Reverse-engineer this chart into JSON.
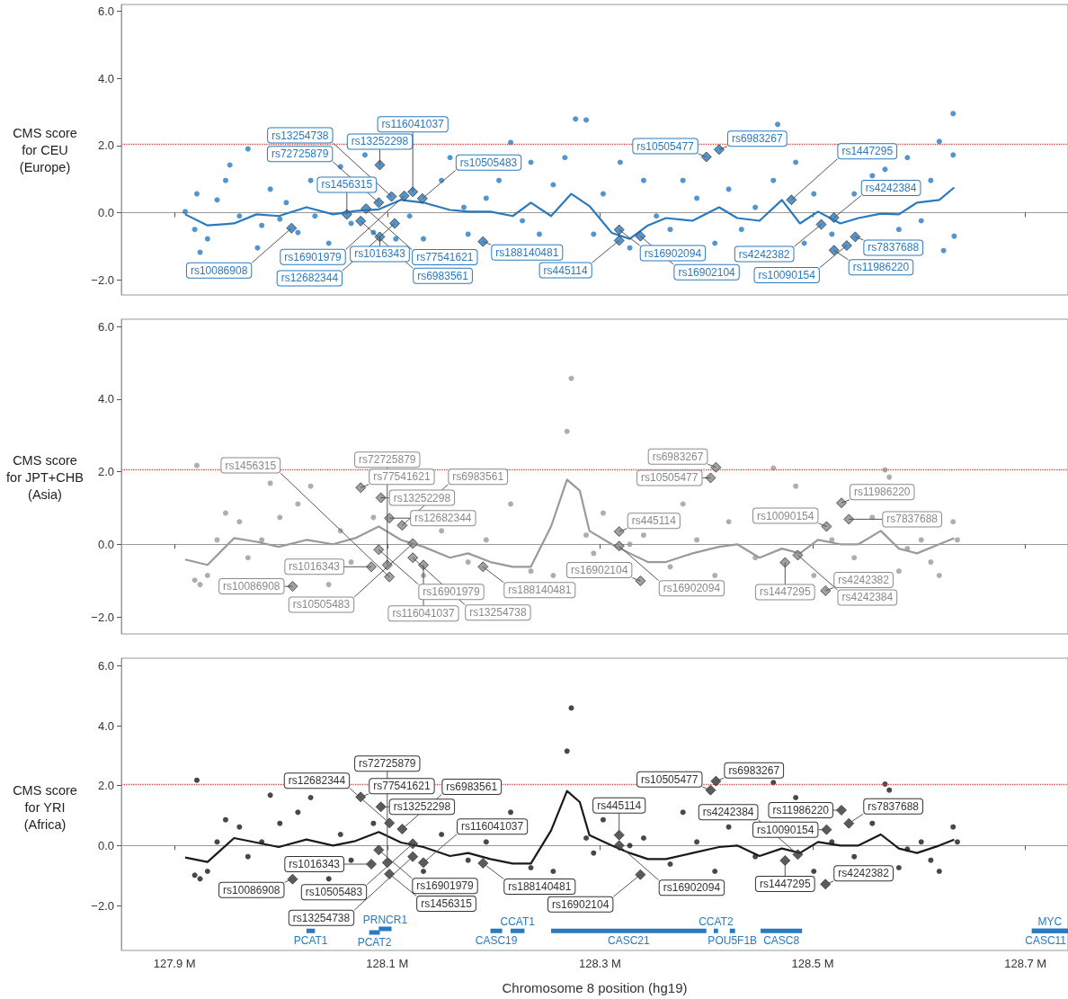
{
  "chart_data": [
    {
      "type": "scatter",
      "ylabel": "CMS score\nfor CEU\n(Europe)",
      "xlim": [
        127.85,
        128.74
      ],
      "ylim": [
        -2.45,
        6.2
      ],
      "xticks": [
        {
          "value": 127.9,
          "label": null
        },
        {
          "value": 128.1,
          "label": null
        },
        {
          "value": 128.3,
          "label": null
        },
        {
          "value": 128.5,
          "label": null
        },
        {
          "value": 128.7,
          "label": null
        }
      ],
      "yticks": [
        {
          "value": -2,
          "label": "−2.0"
        },
        {
          "value": 0,
          "label": "0.0"
        },
        {
          "value": 2,
          "label": "2.0"
        },
        {
          "value": 4,
          "label": "4.0"
        },
        {
          "value": 6,
          "label": "6.0"
        }
      ],
      "tick_labels": "y",
      "ref_lines": [
        {
          "axis": "y",
          "value": 2.05,
          "color": "#e8413a",
          "line_style": "dotted"
        }
      ],
      "series": [
        {
          "type": "scatter",
          "marker": "circle",
          "color": "#2a7ac0",
          "x": [
            127.91,
            127.919,
            127.921,
            127.924,
            127.931,
            127.94,
            127.948,
            127.952,
            127.961,
            127.969,
            127.978,
            127.982,
            127.99,
            127.999,
            128.005,
            128.016,
            128.028,
            128.032,
            128.045,
            128.056,
            128.066,
            128.079,
            128.087,
            128.108,
            128.121,
            128.134,
            128.151,
            128.159,
            128.172,
            128.176,
            128.193,
            128.205,
            128.216,
            128.227,
            128.235,
            128.243,
            128.256,
            128.267,
            128.277,
            128.287,
            128.294,
            128.303,
            128.319,
            128.328,
            128.341,
            128.353,
            128.366,
            128.378,
            128.391,
            128.408,
            128.421,
            128.433,
            128.446,
            128.463,
            128.467,
            128.484,
            128.492,
            128.501,
            128.518,
            128.539,
            128.556,
            128.568,
            128.581,
            128.589,
            128.602,
            128.611,
            128.619,
            128.623,
            128.632,
            128.632,
            128.633
          ],
          "values": [
            0.03,
            -0.5,
            0.56,
            -1.18,
            -0.78,
            0.38,
            0.96,
            1.42,
            -0.1,
            1.9,
            -1.05,
            -0.38,
            0.7,
            -0.19,
            0.3,
            -0.59,
            0.96,
            -0.1,
            -0.91,
            1.37,
            -0.32,
            1.72,
            -0.59,
            -0.78,
            -0.1,
            -0.78,
            0.96,
            1.64,
            0.16,
            -0.64,
            0.43,
            0.96,
            2.09,
            -0.24,
            1.5,
            -0.64,
            0.83,
            1.64,
            2.79,
            2.76,
            -0.64,
            0.56,
            1.5,
            -1.05,
            0.96,
            -0.1,
            -0.5,
            0.96,
            0.43,
            -0.91,
            0.7,
            -0.5,
            0.16,
            0.96,
            2.63,
            1.5,
            -0.91,
            0.56,
            -0.64,
            0.56,
            1.1,
            1.29,
            -0.5,
            1.64,
            -0.24,
            0.96,
            2.12,
            -1.13,
            2.95,
            1.72,
            -0.7
          ]
        },
        {
          "type": "line",
          "marker": "none",
          "line_style": "solid",
          "color": "#2a7ac0",
          "x": [
            127.91,
            127.931,
            127.956,
            127.977,
            127.998,
            128.024,
            128.049,
            128.07,
            128.092,
            128.113,
            128.134,
            128.159,
            128.176,
            128.197,
            128.218,
            128.235,
            128.254,
            128.273,
            128.29,
            128.311,
            128.328,
            128.345,
            128.362,
            128.387,
            128.412,
            128.429,
            128.45,
            128.471,
            128.488,
            128.505,
            128.526,
            128.543,
            128.564,
            128.581,
            128.598,
            128.619,
            128.633
          ],
          "values": [
            -0.05,
            -0.38,
            -0.32,
            -0.05,
            -0.1,
            0.16,
            -0.05,
            0.05,
            0.1,
            0.38,
            0.3,
            0.08,
            0.03,
            0.03,
            -0.1,
            0.3,
            -0.1,
            0.56,
            0.2,
            -0.6,
            -0.78,
            -0.38,
            -0.16,
            -0.24,
            0.16,
            -0.16,
            -0.24,
            0.38,
            -0.32,
            0.03,
            -0.32,
            -0.16,
            -0.03,
            -0.05,
            0.3,
            0.38,
            0.75
          ]
        },
        {
          "type": "scatter",
          "marker": "diamond",
          "color": "#2a7ac0",
          "x": [
            128.062,
            128.092,
            128.093,
            128.104,
            128.08,
            128.124,
            128.133,
            128.116,
            128.01,
            128.075,
            128.093,
            128.107,
            128.19,
            128.318,
            128.318,
            128.338,
            128.4,
            128.412,
            128.48,
            128.508,
            128.52,
            128.54,
            128.52,
            128.532
          ],
          "values": [
            -0.05,
            0.3,
            1.42,
            0.48,
            0.12,
            0.62,
            0.42,
            0.5,
            -0.46,
            -0.25,
            -0.72,
            -0.32,
            -0.86,
            -0.51,
            -0.83,
            -0.7,
            1.66,
            1.88,
            0.38,
            -0.35,
            -0.15,
            -0.72,
            -1.12,
            -0.98
          ],
          "value_labels": [
            "rs1456315",
            "rs72725879",
            "rs13252298",
            "rs13254738",
            "rs77541621",
            "rs116041037",
            "rs10505483",
            "rs16901979",
            "rs10086908",
            "rs6983561",
            "rs1016343",
            "rs12682344",
            "rs188140481",
            "rs16902094",
            "rs445114",
            "rs16902104",
            "rs10505477",
            "rs6983267",
            "rs1447295",
            "rs4242382",
            "rs4242384",
            "rs7837688",
            "rs11986220",
            "rs10090154"
          ]
        }
      ]
    },
    {
      "type": "scatter",
      "ylabel": "CMS score\nfor JPT+CHB\n(Asia)",
      "xlim": [
        127.85,
        128.74
      ],
      "ylim": [
        -2.47,
        6.2
      ],
      "xticks": [
        {
          "value": 127.9,
          "label": null
        },
        {
          "value": 128.1,
          "label": null
        },
        {
          "value": 128.3,
          "label": null
        },
        {
          "value": 128.5,
          "label": null
        },
        {
          "value": 128.7,
          "label": null
        }
      ],
      "yticks": [
        {
          "value": -2,
          "label": "−2.0"
        },
        {
          "value": 0,
          "label": "0.0"
        },
        {
          "value": 2,
          "label": "2.0"
        },
        {
          "value": 4,
          "label": "4.0"
        },
        {
          "value": 6,
          "label": "6.0"
        }
      ],
      "tick_labels": "y",
      "ref_lines": [
        {
          "axis": "y",
          "value": 2.05,
          "color": "#e8413a",
          "line_style": "dotted"
        }
      ],
      "series": [
        {
          "type": "scatter",
          "marker": "circle",
          "color": "#9a9a9a",
          "x": [
            127.921,
            127.919,
            127.924,
            127.931,
            127.94,
            127.948,
            127.961,
            127.969,
            127.982,
            127.99,
            127.999,
            128.016,
            128.028,
            128.045,
            128.056,
            128.066,
            128.087,
            128.134,
            128.151,
            128.176,
            128.193,
            128.216,
            128.235,
            128.256,
            128.269,
            128.273,
            128.287,
            128.294,
            128.303,
            128.328,
            128.341,
            128.366,
            128.378,
            128.391,
            128.408,
            128.421,
            128.446,
            128.463,
            128.484,
            128.501,
            128.518,
            128.539,
            128.556,
            128.568,
            128.572,
            128.581,
            128.589,
            128.602,
            128.611,
            128.619,
            128.632,
            128.636
          ],
          "values": [
            2.17,
            -0.99,
            -1.11,
            -0.86,
            0.12,
            0.86,
            0.62,
            -0.37,
            0.12,
            1.68,
            0.74,
            1.11,
            1.6,
            -1.11,
            0.37,
            -0.49,
            0.74,
            -0.86,
            0.37,
            -0.49,
            0.12,
            1.11,
            -0.74,
            -0.86,
            3.11,
            4.57,
            0.25,
            -0.25,
            0.86,
            0,
            0.25,
            -0.62,
            1.11,
            0.12,
            -0.86,
            0.62,
            -0.37,
            2.1,
            1.6,
            -0.86,
            0.12,
            -0.37,
            0.74,
            2.05,
            1.85,
            -0.74,
            -0.12,
            0.12,
            -0.49,
            -0.86,
            0.62,
            0.12
          ]
        },
        {
          "type": "line",
          "marker": "none",
          "line_style": "solid",
          "color": "#9a9a9a",
          "x": [
            127.91,
            127.931,
            127.956,
            127.977,
            127.998,
            128.024,
            128.049,
            128.07,
            128.092,
            128.113,
            128.134,
            128.159,
            128.176,
            128.197,
            128.218,
            128.235,
            128.254,
            128.269,
            128.281,
            128.29,
            128.311,
            128.328,
            128.345,
            128.362,
            128.387,
            128.412,
            128.429,
            128.45,
            128.471,
            128.488,
            128.505,
            128.526,
            128.543,
            128.564,
            128.581,
            128.598,
            128.619,
            128.633
          ],
          "values": [
            -0.42,
            -0.57,
            0.17,
            0.07,
            -0.07,
            0.12,
            0,
            0.17,
            0.49,
            0.12,
            -0.07,
            -0.37,
            -0.25,
            -0.49,
            -0.62,
            -0.62,
            0.49,
            1.78,
            1.48,
            0.37,
            0,
            -0.25,
            -0.49,
            -0.49,
            -0.25,
            -0.07,
            0,
            -0.37,
            -0.12,
            -0.25,
            0.12,
            0,
            0,
            0.37,
            -0.12,
            -0.25,
            0,
            0.17
          ]
        },
        {
          "type": "scatter",
          "marker": "diamond",
          "color": "#8a8a8a",
          "x": [
            128.075,
            128.094,
            128.102,
            128.114,
            128.092,
            128.124,
            128.085,
            128.124,
            128.134,
            128.102,
            128.1,
            128.011,
            128.19,
            128.318,
            128.318,
            128.338,
            128.409,
            128.404,
            128.527,
            128.513,
            128.534,
            128.486,
            128.474,
            128.512
          ],
          "values": [
            1.56,
            1.28,
            0.72,
            0.52,
            -0.15,
            0.02,
            -0.62,
            -0.37,
            -0.57,
            -0.9,
            -0.57,
            -1.16,
            -0.62,
            0.35,
            -0.05,
            -1.01,
            2.12,
            1.83,
            1.14,
            0.49,
            0.69,
            -0.3,
            -0.5,
            -1.28
          ],
          "value_labels": [
            "rs77541621",
            "rs13252298",
            "rs12682344",
            "rs6983561",
            "rs16901979",
            "rs10505483",
            "rs1016343",
            "rs13254738",
            "rs116041037",
            "rs1456315",
            "rs72725879",
            "rs10086908",
            "rs188140481",
            "rs445114",
            "rs16902094",
            "rs16902104",
            "rs6983267",
            "rs10505477",
            "rs11986220",
            "rs10090154",
            "rs7837688",
            "rs4242384",
            "rs1447295",
            "rs4242382"
          ]
        }
      ]
    },
    {
      "type": "scatter",
      "ylabel": "CMS score\nfor YRI\n(Africa)",
      "xlabel": "Chromosome 8 position (hg19)",
      "xlim": [
        127.85,
        128.74
      ],
      "ylim": [
        -3.5,
        6.25
      ],
      "xticks": [
        {
          "value": 127.9,
          "label": "127.9 M"
        },
        {
          "value": 128.1,
          "label": "128.1 M"
        },
        {
          "value": 128.3,
          "label": "128.3 M"
        },
        {
          "value": 128.5,
          "label": "128.5 M"
        },
        {
          "value": 128.7,
          "label": "128.7 M"
        }
      ],
      "yticks": [
        {
          "value": -2,
          "label": "−2.0"
        },
        {
          "value": 0,
          "label": "0.0"
        },
        {
          "value": 2,
          "label": "2.0"
        },
        {
          "value": 4,
          "label": "4.0"
        },
        {
          "value": 6,
          "label": "6.0"
        }
      ],
      "ref_lines": [
        {
          "axis": "y",
          "value": 2.05,
          "color": "#e8413a",
          "line_style": "dotted"
        }
      ],
      "series": [
        {
          "type": "scatter",
          "marker": "circle",
          "color": "#1a1a1a",
          "x": [
            127.921,
            127.919,
            127.924,
            127.931,
            127.94,
            127.948,
            127.961,
            127.969,
            127.982,
            127.99,
            127.999,
            128.016,
            128.028,
            128.045,
            128.056,
            128.066,
            128.087,
            128.134,
            128.151,
            128.176,
            128.193,
            128.216,
            128.235,
            128.256,
            128.269,
            128.273,
            128.287,
            128.294,
            128.303,
            128.328,
            128.341,
            128.366,
            128.378,
            128.391,
            128.408,
            128.421,
            128.446,
            128.463,
            128.484,
            128.501,
            128.518,
            128.539,
            128.556,
            128.568,
            128.572,
            128.581,
            128.589,
            128.602,
            128.611,
            128.619,
            128.632,
            128.636
          ],
          "values": [
            2.18,
            -0.99,
            -1.11,
            -0.86,
            0.12,
            0.86,
            0.62,
            -0.37,
            0.12,
            1.68,
            0.74,
            1.11,
            1.6,
            -1.11,
            0.37,
            -0.49,
            0.74,
            -0.86,
            0.37,
            -0.49,
            0.12,
            1.11,
            -0.74,
            -0.86,
            3.15,
            4.59,
            0.25,
            -0.25,
            0.86,
            0,
            0.25,
            -0.62,
            1.11,
            0.12,
            -0.86,
            0.62,
            -0.37,
            2.1,
            1.6,
            -0.86,
            0.12,
            -0.37,
            0.74,
            2.05,
            1.85,
            -0.74,
            -0.12,
            0.12,
            -0.49,
            -0.86,
            0.62,
            0.12
          ]
        },
        {
          "type": "line",
          "marker": "none",
          "line_style": "solid",
          "color": "#1a1a1a",
          "x": [
            127.91,
            127.931,
            127.956,
            127.977,
            127.998,
            128.024,
            128.049,
            128.07,
            128.092,
            128.113,
            128.134,
            128.159,
            128.176,
            128.197,
            128.218,
            128.235,
            128.254,
            128.269,
            128.281,
            128.29,
            128.311,
            128.328,
            128.345,
            128.362,
            128.387,
            128.412,
            128.429,
            128.45,
            128.471,
            128.488,
            128.505,
            128.526,
            128.543,
            128.564,
            128.581,
            128.598,
            128.619,
            128.633
          ],
          "values": [
            -0.4,
            -0.55,
            0.25,
            0.1,
            -0.05,
            0.2,
            0,
            0.15,
            0.45,
            0.1,
            -0.05,
            -0.35,
            -0.25,
            -0.45,
            -0.6,
            -0.6,
            0.5,
            1.82,
            1.45,
            0.35,
            0,
            -0.25,
            -0.45,
            -0.45,
            -0.25,
            -0.05,
            0,
            -0.35,
            -0.1,
            -0.25,
            0.12,
            0,
            0,
            0.37,
            -0.1,
            -0.25,
            0,
            0.2
          ]
        },
        {
          "type": "scatter",
          "marker": "diamond",
          "color": "#333333",
          "x": [
            128.075,
            128.094,
            128.102,
            128.114,
            128.092,
            128.124,
            128.085,
            128.124,
            128.134,
            128.102,
            128.1,
            128.011,
            128.19,
            128.318,
            128.318,
            128.338,
            128.409,
            128.404,
            128.527,
            128.513,
            128.534,
            128.486,
            128.474,
            128.512
          ],
          "values": [
            1.62,
            1.29,
            0.75,
            0.55,
            -0.15,
            0.06,
            -0.62,
            -0.37,
            -0.57,
            -0.95,
            -0.57,
            -1.12,
            -0.59,
            0.35,
            0.0,
            -0.97,
            2.15,
            1.85,
            1.18,
            0.53,
            0.74,
            -0.3,
            -0.5,
            -1.29
          ],
          "value_labels": [
            "rs77541621",
            "rs13252298",
            "rs12682344",
            "rs6983561",
            "rs16901979",
            "rs10505483",
            "rs1016343",
            "rs13254738",
            "rs116041037",
            "rs1456315",
            "rs72725879",
            "rs10086908",
            "rs188140481",
            "rs445114",
            "rs16902094",
            "rs16902104",
            "rs6983267",
            "rs10505477",
            "rs11986220",
            "rs10090154",
            "rs7837688",
            "rs4242384",
            "rs1447295",
            "rs4242382"
          ]
        },
        {
          "type": "line",
          "name": "PCAT1",
          "marker": "none",
          "line_style": "solid",
          "color": "#2a7ac0",
          "x": [
            128.024,
            128.032
          ],
          "values": [
            -2.85,
            -2.85
          ]
        },
        {
          "type": "line",
          "name": "PCAT2",
          "marker": "none",
          "line_style": "solid",
          "color": "#2a7ac0",
          "x": [
            128.083,
            128.093
          ],
          "values": [
            -2.9,
            -2.9
          ]
        },
        {
          "type": "line",
          "name": "PRNCR1",
          "marker": "none",
          "line_style": "solid",
          "color": "#2a7ac0",
          "x": [
            128.092,
            128.104
          ],
          "values": [
            -2.78,
            -2.78
          ]
        },
        {
          "type": "line",
          "name": "CASC19",
          "marker": "none",
          "line_style": "solid",
          "color": "#2a7ac0",
          "x": [
            128.197,
            128.208
          ],
          "values": [
            -2.85,
            -2.85
          ]
        },
        {
          "type": "line",
          "name": "CCAT1",
          "marker": "none",
          "line_style": "solid",
          "color": "#2a7ac0",
          "x": [
            128.216,
            128.229
          ],
          "values": [
            -2.85,
            -2.85
          ]
        },
        {
          "type": "line",
          "name": "CASC21",
          "marker": "none",
          "line_style": "solid",
          "color": "#2a7ac0",
          "x": [
            128.254,
            128.4
          ],
          "values": [
            -2.85,
            -2.85
          ]
        },
        {
          "type": "line",
          "name": "POU5F1B",
          "marker": "none",
          "line_style": "solid",
          "color": "#2a7ac0",
          "x": [
            128.422,
            128.427
          ],
          "values": [
            -2.85,
            -2.85
          ]
        },
        {
          "type": "line",
          "name": "CCAT2",
          "marker": "none",
          "line_style": "solid",
          "color": "#2a7ac0",
          "x": [
            128.407,
            128.411
          ],
          "values": [
            -2.85,
            -2.85
          ]
        },
        {
          "type": "line",
          "name": "CASC8",
          "marker": "none",
          "line_style": "solid",
          "color": "#2a7ac0",
          "x": [
            128.451,
            128.49
          ],
          "values": [
            -2.85,
            -2.85
          ]
        },
        {
          "type": "line",
          "name": "CASC11",
          "marker": "none",
          "line_style": "solid",
          "color": "#2a7ac0",
          "x": [
            128.706,
            128.74
          ],
          "values": [
            -2.85,
            -2.85
          ]
        },
        {
          "type": "line",
          "name": "MYC",
          "marker": "none",
          "line_style": "solid",
          "color": "#2a7ac0",
          "x": [
            128.706,
            128.74
          ],
          "values": [
            -2.85,
            -2.85
          ]
        }
      ]
    }
  ]
}
